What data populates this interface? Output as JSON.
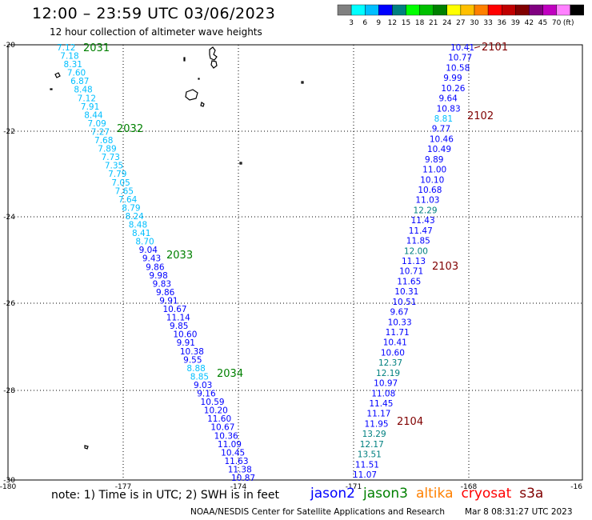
{
  "header": {
    "title": "12:00 – 23:59 UTC 03/06/2023",
    "subtitle": "12 hour collection of altimeter wave heights"
  },
  "colorbar": {
    "colors": [
      "#808080",
      "#00ffff",
      "#00bfff",
      "#0000ff",
      "#008080",
      "#00ff00",
      "#00c000",
      "#008000",
      "#ffff00",
      "#ffc000",
      "#ff8000",
      "#ff0000",
      "#c00000",
      "#800000",
      "#800080",
      "#c000c0",
      "#ff80ff",
      "#000000"
    ],
    "labels": [
      "3",
      "6",
      "9",
      "12",
      "15",
      "18",
      "21",
      "24",
      "27",
      "30",
      "33",
      "36",
      "39",
      "42",
      "45",
      "70",
      "(ft)"
    ]
  },
  "axes": {
    "lon_labels": [
      "-180",
      "-177",
      "-174",
      "-171",
      "-168",
      "-16"
    ],
    "lat_labels": [
      "-20",
      "-22",
      "-24",
      "-26",
      "-28",
      "-30"
    ]
  },
  "tracks": {
    "left": [
      "7.12",
      "7.18",
      "8.31",
      "7.60",
      "6.87",
      "8.48",
      "7.12",
      "7.91",
      "8.44",
      "7.09",
      "7.27",
      "7.68",
      "7.89",
      "7.73",
      "7.35",
      "7.79",
      "7.05",
      "7.65",
      "7.64",
      "8.79",
      "8.24",
      "8.48",
      "8.41",
      "8.70",
      "9.04",
      "9.43",
      "9.86",
      "9.98",
      "9.83",
      "9.86",
      "9.91",
      "10.67",
      "11.14",
      "9.85",
      "10.60",
      "9.91",
      "10.38",
      "9.55",
      "8.88",
      "8.85",
      "9.03",
      "9.16",
      "10.59",
      "10.20",
      "11.60",
      "10.67",
      "10.36",
      "11.09",
      "10.45",
      "11.63",
      "11.38",
      "10.87"
    ],
    "right": [
      "10.41",
      "10.77",
      "10.58",
      "9.99",
      "10.26",
      "9.64",
      "10.83",
      "8.81",
      "9.77",
      "10.46",
      "10.49",
      "9.89",
      "11.00",
      "10.10",
      "10.68",
      "11.03",
      "12.29",
      "11.43",
      "11.47",
      "11.85",
      "12.00",
      "11.13",
      "10.71",
      "11.65",
      "10.31",
      "10.51",
      "9.67",
      "10.33",
      "11.71",
      "10.41",
      "10.60",
      "12.37",
      "12.19",
      "10.97",
      "11.08",
      "11.45",
      "11.17",
      "11.95",
      "13.29",
      "12.17",
      "13.51",
      "11.51",
      "11.07"
    ],
    "time_labels_left": [
      "2031",
      "2032",
      "2033",
      "2034"
    ],
    "time_labels_right": [
      "2101",
      "2102",
      "2103",
      "2104"
    ]
  },
  "footer": {
    "note": "note: 1) Time is in UTC; 2) SWH is in feet",
    "legend": [
      {
        "label": "jason2",
        "color": "#0000ff"
      },
      {
        "label": "jason3",
        "color": "#008000"
      },
      {
        "label": "altika",
        "color": "#ff8000"
      },
      {
        "label": "cryosat",
        "color": "#ff0000"
      },
      {
        "label": "s3a",
        "color": "#800000"
      }
    ],
    "credit": "NOAA/NESDIS Center for Satellite Applications and Research",
    "timestamp": "Mar  8 08:31:27 UTC 2023"
  }
}
